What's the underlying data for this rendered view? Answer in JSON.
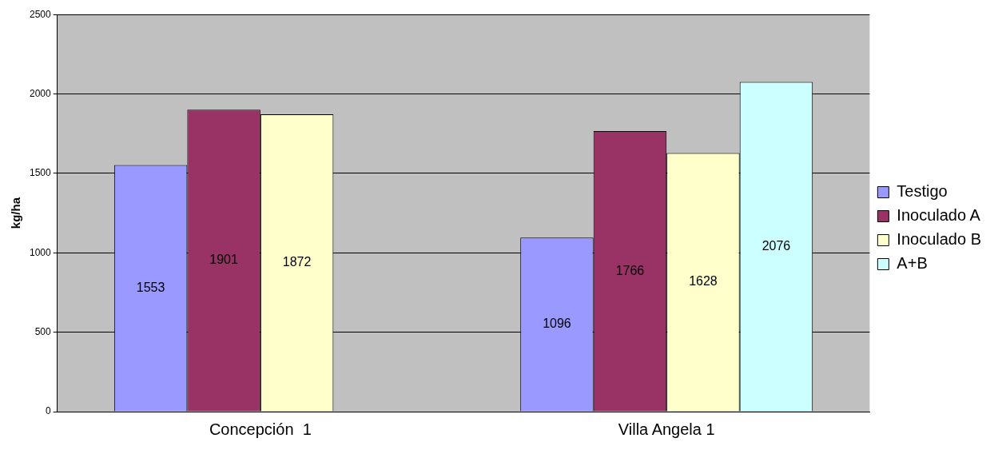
{
  "chart_data": {
    "type": "bar",
    "ylabel": "kg/ha",
    "categories": [
      "Concepción  1",
      "Villa Angela 1"
    ],
    "series": [
      {
        "name": "Testigo",
        "color": "#9999ff",
        "values": [
          1553,
          1096
        ]
      },
      {
        "name": "Inoculado A",
        "color": "#993366",
        "values": [
          1901,
          1766
        ]
      },
      {
        "name": "Inoculado B",
        "color": "#ffffcc",
        "values": [
          1872,
          1628
        ]
      },
      {
        "name": "A+B",
        "color": "#ccffff",
        "values": [
          null,
          2076
        ]
      }
    ],
    "ylim": [
      0,
      2500
    ],
    "yticks": [
      0,
      500,
      1000,
      1500,
      2000,
      2500
    ],
    "grid": "y",
    "legend": "right",
    "data_labels": true
  }
}
